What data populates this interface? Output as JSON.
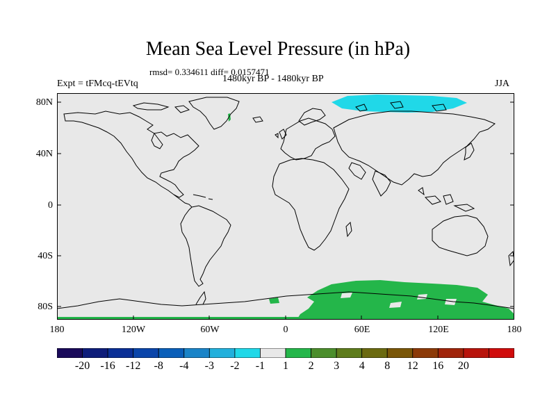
{
  "title": "Mean Sea Level Pressure (in hPa)",
  "subtitle": "rmsd= 0.334611 diff= 0.0157471",
  "left_label": "Expt = tFMcq-tEVtq",
  "center_label": "1480kyr BP - 1480kyr BP",
  "right_label": "JJA",
  "lat_labels": [
    "80N",
    "40N",
    "0",
    "40S",
    "80S"
  ],
  "lon_labels": [
    "180",
    "120W",
    "60W",
    "0",
    "60E",
    "120E",
    "180"
  ],
  "colorbar": {
    "colors": [
      "#1a0a5a",
      "#0e1d7a",
      "#0a2f96",
      "#0a45aa",
      "#0a5fb9",
      "#1a84c8",
      "#22b0dc",
      "#20d8e8",
      "#e8e8e8",
      "#24b64a",
      "#4b8e2c",
      "#5e7c1c",
      "#6b6a10",
      "#7a5608",
      "#8c3a08",
      "#a0240a",
      "#b8140c",
      "#d00c0c"
    ],
    "labels": [
      "-20",
      "-16",
      "-12",
      "-8",
      "-4",
      "-3",
      "-2",
      "-1",
      "1",
      "2",
      "3",
      "4",
      "8",
      "12",
      "16",
      "20"
    ]
  },
  "colors": {
    "background": "#e8e8e8",
    "positive_anomaly": "#24b64a",
    "negative_anomaly": "#20d8e8"
  }
}
